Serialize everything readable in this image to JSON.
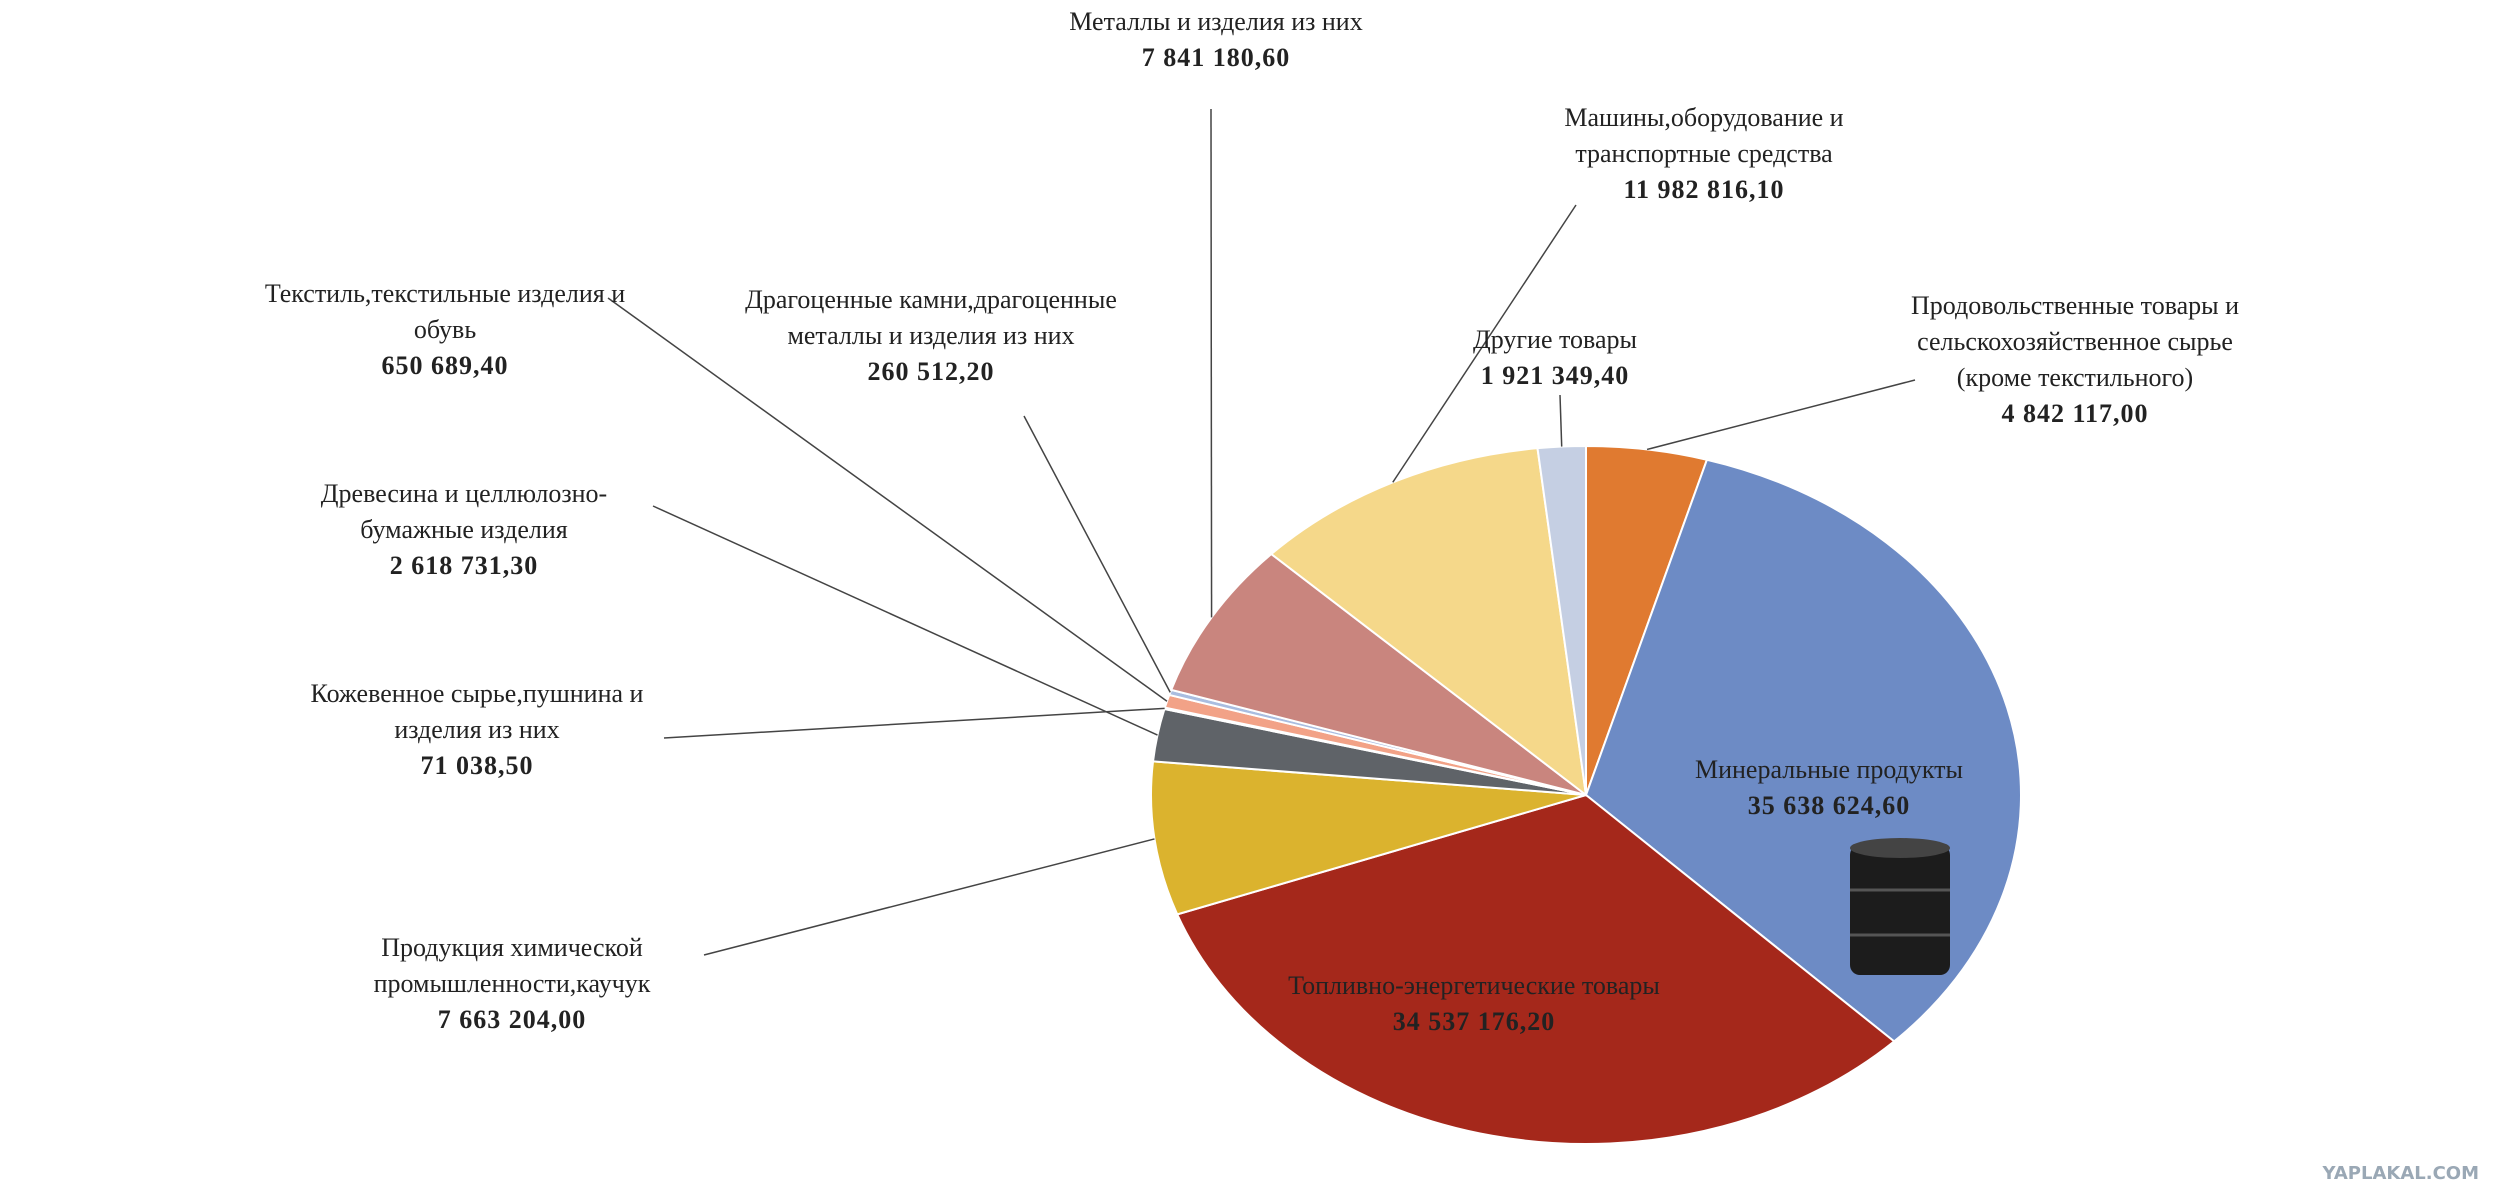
{
  "chart_data": {
    "type": "pie",
    "categories": [
      "Продовольственные товары и сельскохозяйственное сырье (кроме текстильного)",
      "Минеральные продукты",
      "Топливно-энергетические товары",
      "Продукция химической промышленности,каучук",
      "Древесина и целлюлозно-бумажные изделия",
      "Кожевенное сырье,пушнина и изделия из них",
      "Текстиль,текстильные изделия и обувь",
      "Драгоценные камни,драгоценные металлы и изделия из них",
      "Металлы и изделия из них",
      "Машины,оборудование и транспортные средства",
      "Другие товары"
    ],
    "values": [
      4842117.0,
      35638624.6,
      34537176.2,
      7663204.0,
      2618731.3,
      71038.5,
      650689.4,
      260512.2,
      7841180.6,
      11982816.1,
      1921349.4
    ],
    "value_labels": [
      "4 842 117,00",
      "35 638 624,60",
      "34 537 176,20",
      "7 663 204,00",
      "2 618 731,30",
      "71 038,50",
      "650 689,40",
      "260 512,20",
      "7 841 180,60",
      "11 982 816,10",
      "1 921 349,40"
    ],
    "colors": [
      "#e07a30",
      "#6d8bc5",
      "#a5281b",
      "#dbb32e",
      "#5f6368",
      "#e9c3a8",
      "#f2a287",
      "#a9bde0",
      "#c9857e",
      "#f5d88a",
      "#c5cfe3"
    ],
    "watermark": "YAPLAKAL.COM"
  }
}
